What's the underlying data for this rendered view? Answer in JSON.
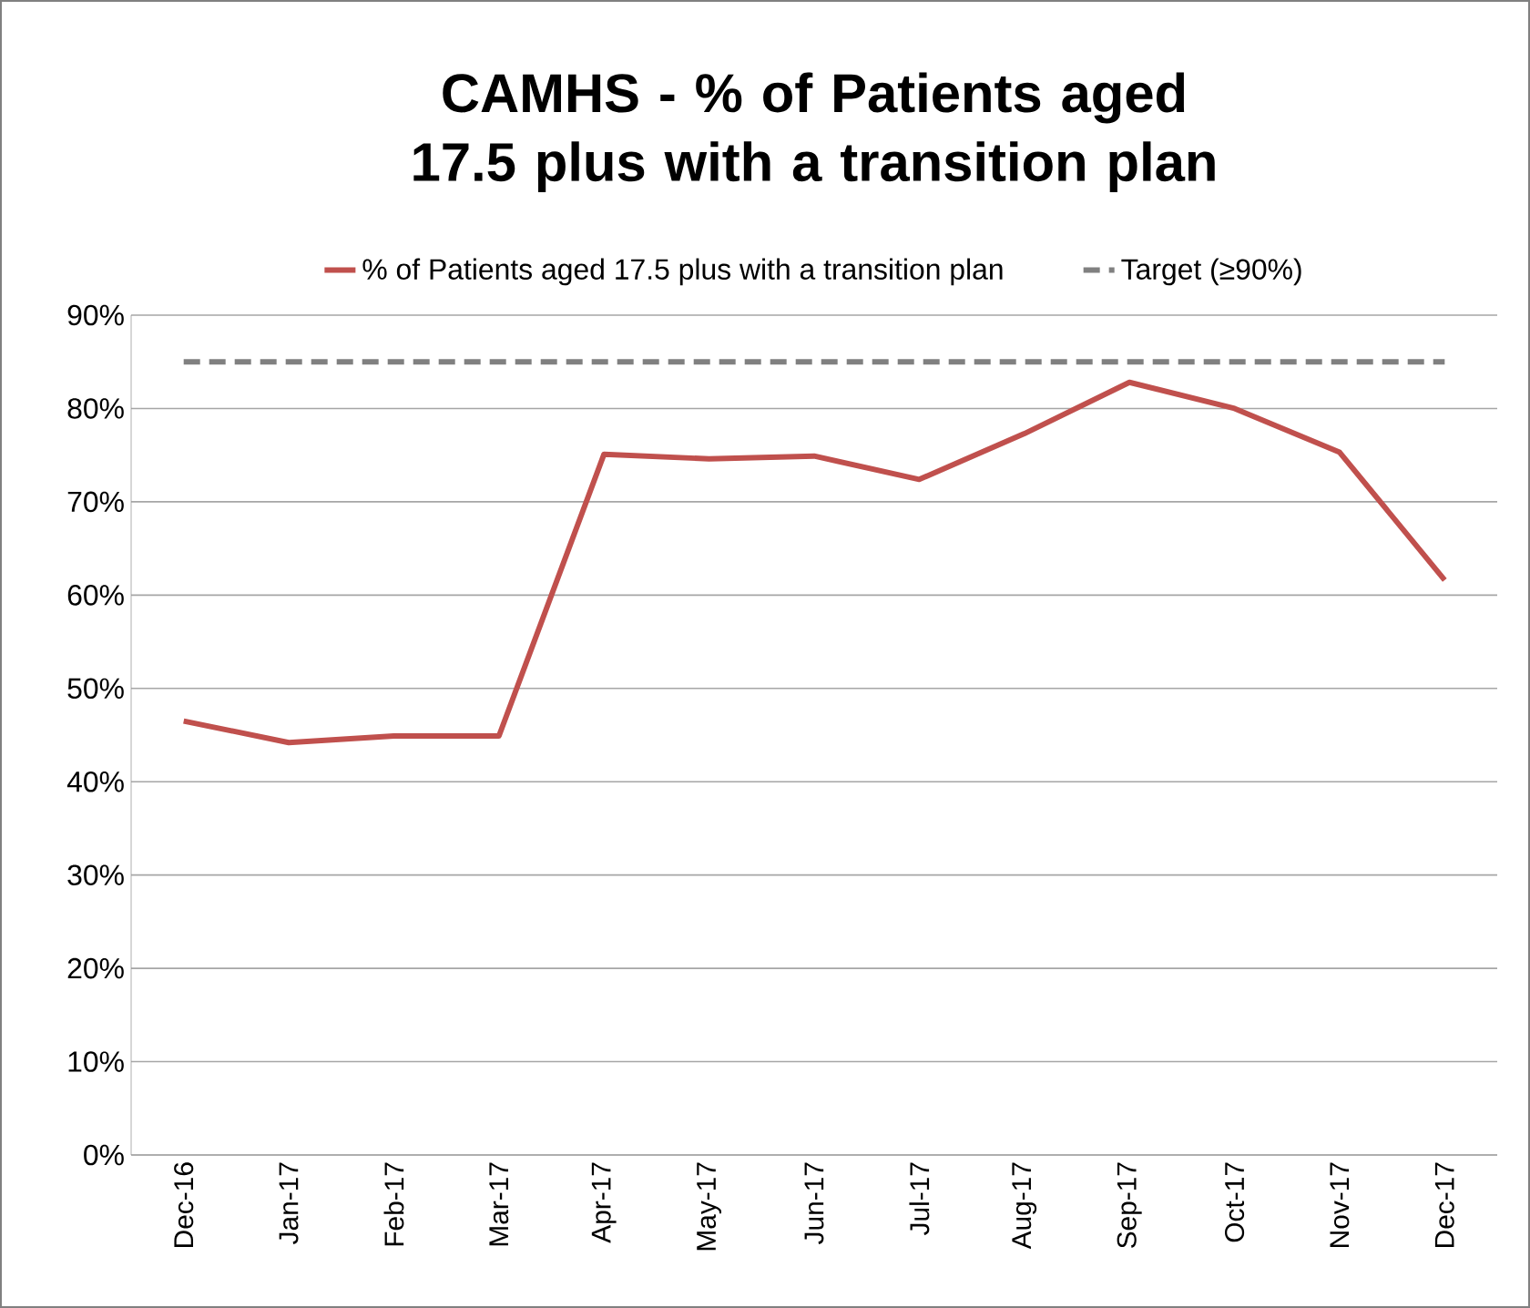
{
  "chart_data": {
    "type": "line",
    "title": "CAMHS  - %  of Patients aged 17.5 plus with a transition plan",
    "categories": [
      "Dec-16",
      "Jan-17",
      "Feb-17",
      "Mar-17",
      "Apr-17",
      "May-17",
      "Jun-17",
      "Jul-17",
      "Aug-17",
      "Sep-17",
      "Oct-17",
      "Nov-17",
      "Dec-17"
    ],
    "series": [
      {
        "name": "%  of Patients aged 17.5 plus with a transition plan",
        "color": "#c0504d",
        "line_style": "solid",
        "values": [
          46.5,
          44.2,
          44.9,
          44.9,
          75.1,
          74.6,
          74.9,
          72.4,
          77.3,
          82.8,
          80.0,
          75.3,
          61.6
        ]
      },
      {
        "name": "Target (≥90%)",
        "color": "#808080",
        "line_style": "dashed",
        "values": [
          85,
          85,
          85,
          85,
          85,
          85,
          85,
          85,
          85,
          85,
          85,
          85,
          85
        ]
      }
    ],
    "ylim": [
      0,
      90
    ],
    "yticks": [
      {
        "value": 0,
        "label": "0%"
      },
      {
        "value": 10,
        "label": "10%"
      },
      {
        "value": 20,
        "label": "20%"
      },
      {
        "value": 30,
        "label": "30%"
      },
      {
        "value": 40,
        "label": "40%"
      },
      {
        "value": 50,
        "label": "50%"
      },
      {
        "value": 60,
        "label": "60%"
      },
      {
        "value": 70,
        "label": "70%"
      },
      {
        "value": 80,
        "label": "80%"
      },
      {
        "value": 90,
        "label": "90%"
      }
    ],
    "grid": "y",
    "legend": "top",
    "marker": "none"
  }
}
